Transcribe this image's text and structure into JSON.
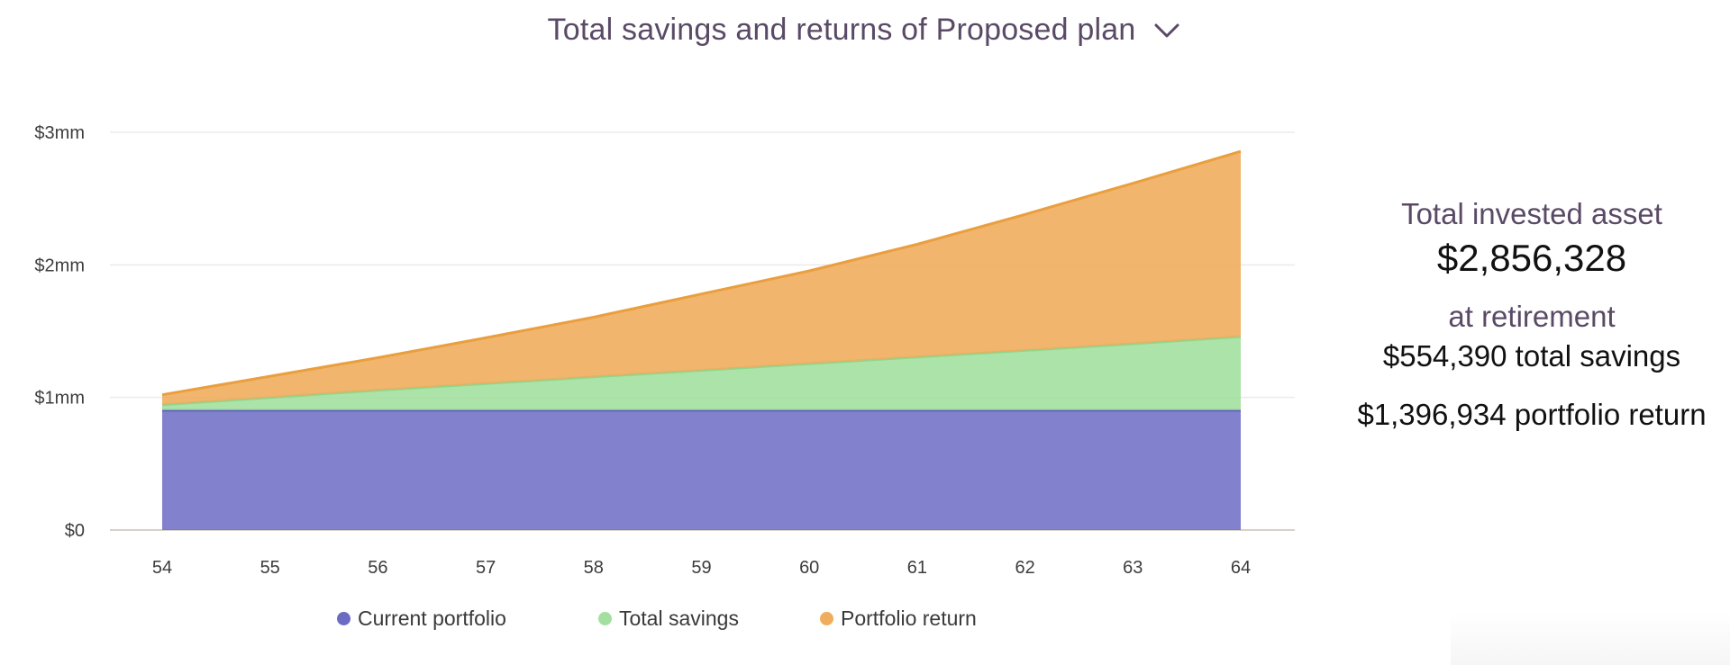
{
  "header": {
    "title": "Total savings and returns of Proposed plan",
    "dropdown_icon": "chevron-down-icon"
  },
  "chart_data": {
    "type": "area",
    "stacked": true,
    "x": [
      54,
      55,
      56,
      57,
      58,
      59,
      60,
      61,
      62,
      63,
      64
    ],
    "xticks": [
      "54",
      "55",
      "56",
      "57",
      "58",
      "59",
      "60",
      "61",
      "62",
      "63",
      "64"
    ],
    "yticks": [
      {
        "value": 0,
        "label": "$0"
      },
      {
        "value": 1000000,
        "label": "$1mm"
      },
      {
        "value": 2000000,
        "label": "$2mm"
      },
      {
        "value": 3000000,
        "label": "$3mm"
      }
    ],
    "ylim": [
      0,
      3000000
    ],
    "grid": true,
    "legend_position": "bottom",
    "series": [
      {
        "name": "Current portfolio",
        "color": "#6b6bc4",
        "line_color": "#5a5ab8",
        "values": [
          905000,
          905000,
          905000,
          905000,
          905000,
          905000,
          905000,
          905000,
          905000,
          905000,
          905000
        ]
      },
      {
        "name": "Total savings",
        "color": "#a3e0a0",
        "line_color": "#8fd68b",
        "values": [
          40000,
          95000,
          150000,
          200000,
          250000,
          300000,
          350000,
          400000,
          450000,
          500000,
          554390
        ]
      },
      {
        "name": "Portfolio return",
        "color": "#f0ad5e",
        "line_color": "#ea9f3e",
        "values": [
          75000,
          160000,
          245000,
          345000,
          450000,
          575000,
          700000,
          850000,
          1025000,
          1210000,
          1396934
        ]
      }
    ]
  },
  "summary": {
    "label": "Total invested asset",
    "total": "$2,856,328",
    "sub_label": "at retirement",
    "savings_line": "$554,390 total savings",
    "return_line": "$1,396,934 portfolio return"
  }
}
